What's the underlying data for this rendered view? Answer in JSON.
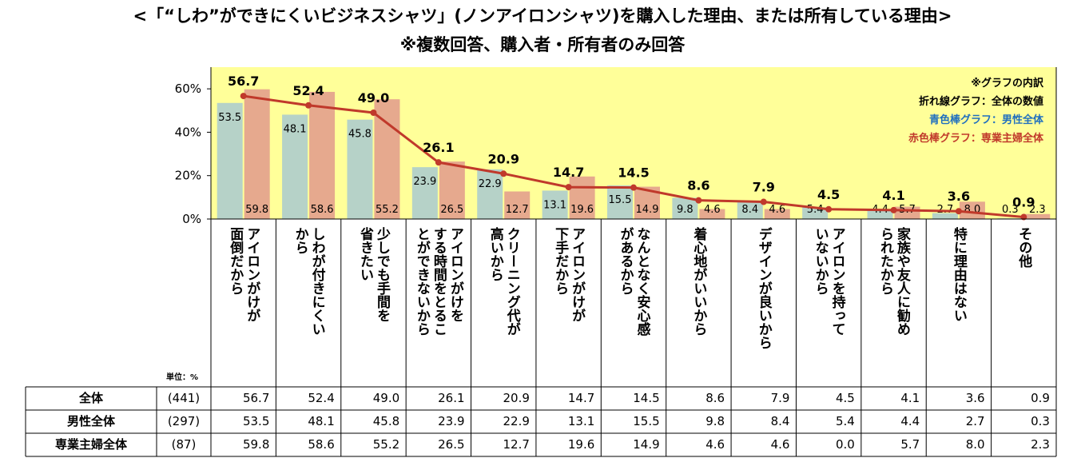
{
  "chart_data": {
    "type": "bar",
    "title": "<「“しわ”ができにくいビジネスシャツ」(ノンアイロンシャツ)を購入した理由、または所有している理由>",
    "subtitle": "※複数回答、購入者・所有者のみ回答",
    "unit_label": "単位：%",
    "yticks": [
      "0%",
      "20%",
      "40%",
      "60%"
    ],
    "ylim": [
      0,
      70
    ],
    "legend": {
      "title": "※グラフの内訳",
      "line": "折れ線グラフ：全体の数値",
      "blue": "青色棒グラフ：男性全体",
      "red": "赤色棒グラフ：専業主婦全体",
      "placement": "top-right"
    },
    "categories": [
      "アイロンがけが|面倒だから",
      "しわが付きにくい|から",
      "少しでも手間を|省きたい",
      "アイロンがけを|する時間をとるこ|とができないから",
      "クリーニング代が|高いから",
      "アイロンがけが|下手だから",
      "なんとなく安心感|があるから",
      "着心地がいいから",
      "デザインが良いから",
      "アイロンを持って|いないから",
      "家族や友人に勧め|られたから",
      "特に理由はない",
      "その他"
    ],
    "series": [
      {
        "name": "全体",
        "n": "(441)",
        "type": "line",
        "color": "#c0392b",
        "values": [
          56.7,
          52.4,
          49.0,
          26.1,
          20.9,
          14.7,
          14.5,
          8.6,
          7.9,
          4.5,
          4.1,
          3.6,
          0.9
        ]
      },
      {
        "name": "男性全体",
        "n": "(297)",
        "type": "bar",
        "color": "#b6d2c8",
        "values": [
          53.5,
          48.1,
          45.8,
          23.9,
          22.9,
          13.1,
          15.5,
          9.8,
          8.4,
          5.4,
          4.4,
          2.7,
          0.3
        ]
      },
      {
        "name": "専業主婦全体",
        "n": "(87)",
        "type": "bar",
        "color": "#e6a98e",
        "values": [
          59.8,
          58.6,
          55.2,
          26.5,
          12.7,
          19.6,
          14.9,
          4.6,
          4.6,
          0.0,
          5.7,
          8.0,
          2.3
        ]
      }
    ],
    "colors": {
      "plot_bg": "#ffff99",
      "line": "#c0392b",
      "male_bar": "#b6d2c8",
      "housewife_bar": "#e6a98e",
      "legend_blue": "#1f6fbf",
      "legend_red": "#c0392b"
    }
  }
}
